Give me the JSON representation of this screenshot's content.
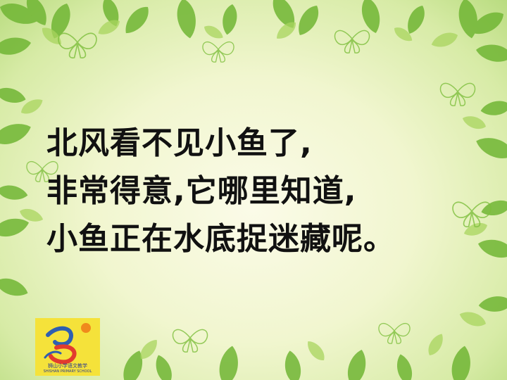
{
  "slide": {
    "lines": [
      "北风看不见小鱼了,",
      "非常得意,它哪里知道,",
      "小鱼正在水底捉迷藏呢。"
    ]
  },
  "logo": {
    "name": "狮山小学语文教学",
    "subtitle": "SHISHAN PRIMARY SCHOOL"
  },
  "colors": {
    "leaf_dark": "#5fa52b",
    "leaf_light": "#9bcc54",
    "text": "#111111",
    "logo_bg": "#f5e23a"
  }
}
